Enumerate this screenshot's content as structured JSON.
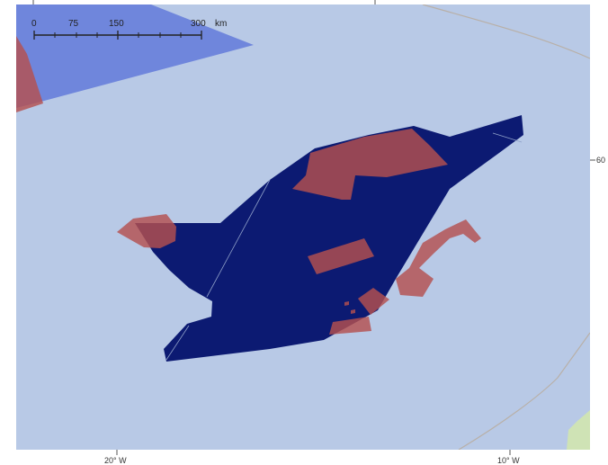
{
  "map": {
    "colors": {
      "ocean": "#b8c9e6",
      "zone_dark": "#0c1a72",
      "zone_light": "#6f86dc",
      "hotspot": "#b5504f",
      "land": "#cfe3b5",
      "frame": "#ffffff",
      "boundary_line": "#b8b0a8"
    },
    "scale_bar": {
      "ticks": [
        "0",
        "75",
        "150",
        "300"
      ],
      "unit": "km"
    },
    "axis": {
      "x_ticks": [
        "20° W",
        "10° W"
      ],
      "y_ticks": [
        "60"
      ]
    }
  }
}
